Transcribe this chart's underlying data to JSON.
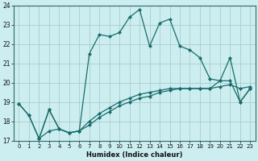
{
  "xlabel": "Humidex (Indice chaleur)",
  "bg_color": "#cceef0",
  "grid_color": "#aacccc",
  "line_color": "#1a6b6b",
  "xlim_min": -0.5,
  "xlim_max": 23.5,
  "ylim_min": 17,
  "ylim_max": 24,
  "x_ticks": [
    0,
    1,
    2,
    3,
    4,
    5,
    6,
    7,
    8,
    9,
    10,
    11,
    12,
    13,
    14,
    15,
    16,
    17,
    18,
    19,
    20,
    21,
    22,
    23
  ],
  "y_ticks": [
    17,
    18,
    19,
    20,
    21,
    22,
    23,
    24
  ],
  "series": [
    {
      "x": [
        0,
        1,
        2,
        3,
        4,
        5,
        6,
        7,
        8,
        9,
        10,
        11,
        12,
        13,
        14,
        15,
        16,
        17,
        18,
        19,
        20,
        21,
        22,
        23
      ],
      "y": [
        18.9,
        18.3,
        17.1,
        18.6,
        17.6,
        17.4,
        17.5,
        21.5,
        22.5,
        22.4,
        22.6,
        23.4,
        23.8,
        21.9,
        23.1,
        23.3,
        21.9,
        21.7,
        21.3,
        20.2,
        20.1,
        21.3,
        19.0,
        19.7
      ]
    },
    {
      "x": [
        0,
        1,
        2,
        3,
        4,
        5,
        6,
        7,
        8,
        9,
        10,
        11,
        12,
        13,
        14,
        15,
        16,
        17,
        18,
        19,
        20,
        21,
        22,
        23
      ],
      "y": [
        18.9,
        18.3,
        17.1,
        17.5,
        17.6,
        17.4,
        17.5,
        17.8,
        18.2,
        18.5,
        18.8,
        19.0,
        19.2,
        19.3,
        19.5,
        19.6,
        19.7,
        19.7,
        19.7,
        19.7,
        19.8,
        19.9,
        19.7,
        19.8
      ]
    },
    {
      "x": [
        2,
        3,
        4,
        5,
        6,
        7,
        8,
        9,
        10,
        11,
        12,
        13,
        14,
        15,
        16,
        17,
        18,
        19,
        20,
        21,
        22,
        23
      ],
      "y": [
        17.1,
        18.6,
        17.6,
        17.4,
        17.5,
        18.0,
        18.4,
        18.7,
        19.0,
        19.2,
        19.4,
        19.5,
        19.6,
        19.7,
        19.7,
        19.7,
        19.7,
        19.7,
        20.1,
        20.1,
        19.0,
        19.7
      ]
    }
  ]
}
